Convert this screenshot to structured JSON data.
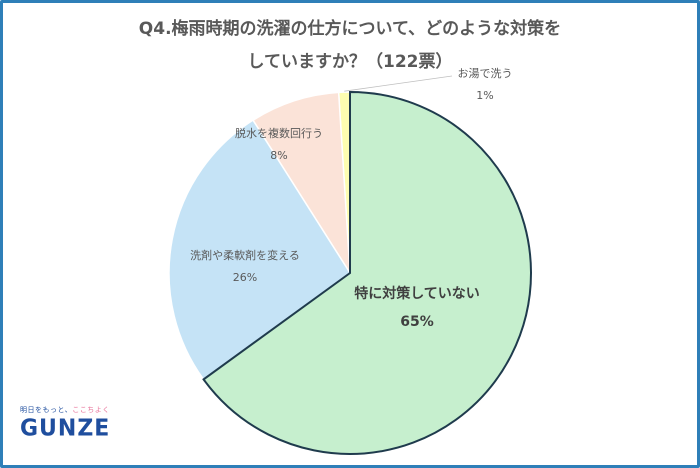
{
  "title_line1": "Q4.梅雨時期の洗濯の仕方について、どのような対策を",
  "title_line2": "していますか？（122票）",
  "logo": {
    "tagline_part1": "明日をもっと、",
    "tagline_part2": "ここちよく",
    "brand": "GUNZE"
  },
  "colors": {
    "frame": "#2e7fb8",
    "title": "#595959"
  },
  "chart_data": {
    "type": "pie",
    "title": "Q4.梅雨時期の洗濯の仕方について、どのような対策をしていますか？（122票）",
    "slices": [
      {
        "label": "特に対策していない",
        "value": 65,
        "value_label": "65%",
        "color": "#c6efce"
      },
      {
        "label": "洗剤や柔軟剤を変える",
        "value": 26,
        "value_label": "26%",
        "color": "#c5e3f6"
      },
      {
        "label": "脱水を複数回行う",
        "value": 8,
        "value_label": "8%",
        "color": "#fbe3d8"
      },
      {
        "label": "お湯で洗う",
        "value": 1,
        "value_label": "1%",
        "color": "#fdfdb0"
      }
    ]
  }
}
